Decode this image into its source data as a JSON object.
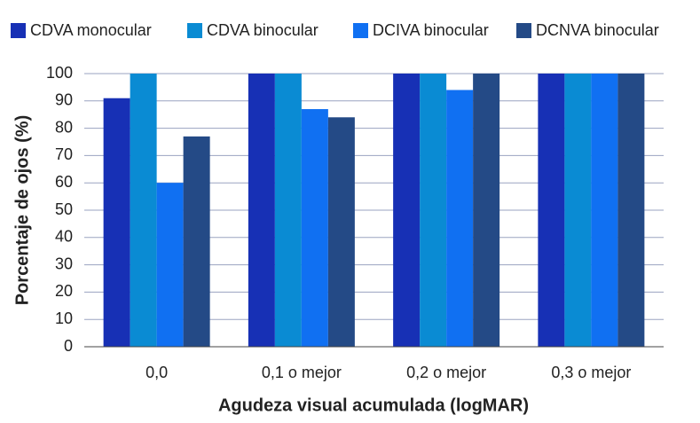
{
  "chart_data": {
    "type": "bar",
    "x_label": "Agudeza visual acumulada (logMAR)",
    "y_label": "Porcentaje de ojos (%)",
    "categories": [
      "0,0",
      "0,1 o mejor",
      "0,2 o mejor",
      "0,3 o mejor"
    ],
    "series": [
      {
        "name": "CDVA monocular",
        "color": "#1730b5",
        "values": [
          91,
          100,
          100,
          100
        ]
      },
      {
        "name": "CDVA binocular",
        "color": "#0a8bd3",
        "values": [
          100,
          100,
          100,
          100
        ]
      },
      {
        "name": "DCIVA binocular",
        "color": "#1070f2",
        "values": [
          60,
          87,
          94,
          100
        ]
      },
      {
        "name": "DCNVA binocular",
        "color": "#244a86",
        "values": [
          77,
          84,
          100,
          100
        ]
      }
    ],
    "ylim": [
      0,
      100
    ],
    "yticks": [
      0,
      10,
      20,
      30,
      40,
      50,
      60,
      70,
      80,
      90,
      100
    ],
    "grid": true,
    "legend": "top"
  }
}
